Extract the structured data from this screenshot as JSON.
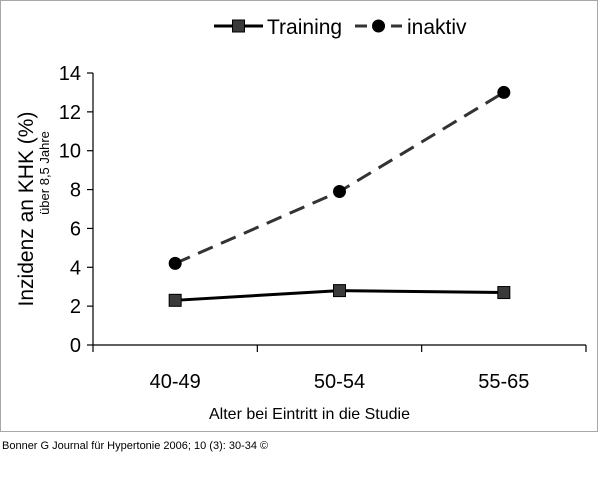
{
  "chart_data": {
    "type": "line",
    "categories": [
      "40-49",
      "50-54",
      "55-65"
    ],
    "series": [
      {
        "name": "Training",
        "values": [
          2.3,
          2.8,
          2.7
        ],
        "marker": "square",
        "dash": "solid",
        "color": "#000000",
        "marker_color": "#3a3a3a"
      },
      {
        "name": "inaktiv",
        "values": [
          4.2,
          7.9,
          13.0
        ],
        "marker": "circle",
        "dash": "dashed",
        "color": "#333333",
        "marker_color": "#000000"
      }
    ],
    "title": "",
    "xlabel": "Alter bei Eintritt in die Studie",
    "ylabel": "Inzidenz an KHK (%)",
    "ylabel_sub": "über 8,5 Jahre",
    "ylim": [
      0,
      14
    ],
    "yticks": [
      0,
      2,
      4,
      6,
      8,
      10,
      12,
      14
    ],
    "legend": "top-center",
    "grid": false
  },
  "footer": {
    "citation": "Bonner G Journal für Hypertonie 2006; 10 (3): 30-34 ©"
  }
}
